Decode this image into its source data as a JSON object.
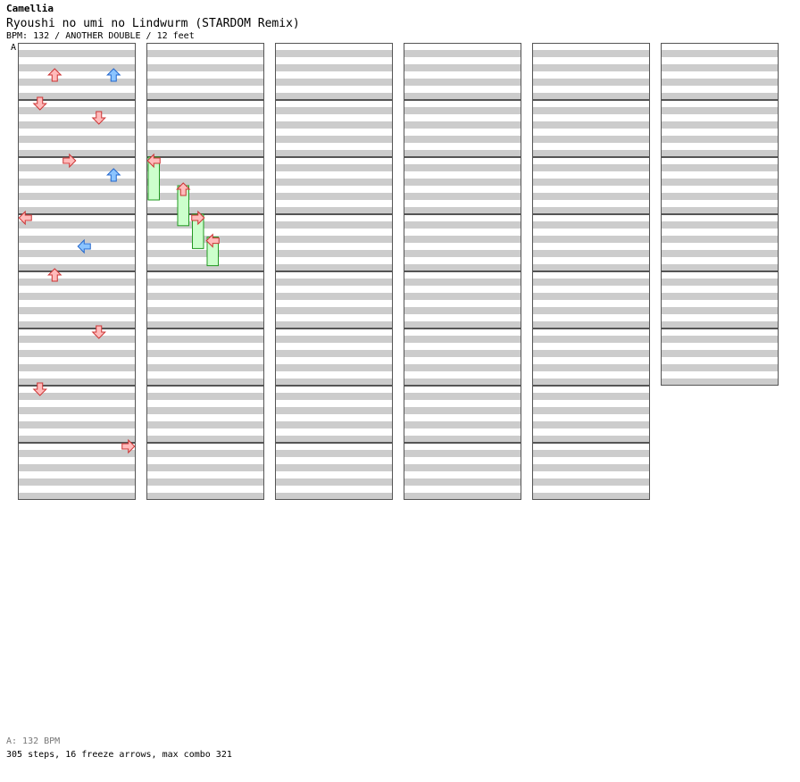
{
  "header": {
    "artist": "Camellia",
    "title": "Ryoushi no umi no Lindwurm (STARDOM Remix)",
    "info": "BPM: 132 / ANOTHER DOUBLE / 12 feet",
    "bpm_marker": "A"
  },
  "footer": {
    "bpm_legend": "A: 132 BPM",
    "stats": "305 steps, 16 freeze arrows, max combo 321"
  },
  "colors": {
    "band": "#cccccc",
    "band_alt": "#ffffff",
    "measure_border": "#555555",
    "arrow_red": "#ffbbbb",
    "arrow_red_stroke": "#cc3333",
    "arrow_blue": "#8bc4ff",
    "arrow_blue_stroke": "#2266cc",
    "arrow_green": "#66ee66",
    "arrow_green_stroke": "#119911",
    "freeze_body": "#ccffcc",
    "freeze_stroke": "#229922"
  },
  "chart_data": {
    "type": "table",
    "mode": "double",
    "lanes": 8,
    "lane_directions": [
      "left",
      "down",
      "up",
      "right",
      "left",
      "down",
      "up",
      "right"
    ],
    "measure_count": 46,
    "columns": 6,
    "measures_per_column": 8,
    "notes": [
      {
        "m": 0.5,
        "lane": 2,
        "div": "4"
      },
      {
        "m": 0.5,
        "lane": 6,
        "div": "8"
      },
      {
        "m": 1.0,
        "lane": 1,
        "div": "4"
      },
      {
        "m": 1.25,
        "lane": 5,
        "div": "4"
      },
      {
        "m": 2.0,
        "lane": 3,
        "div": "4"
      },
      {
        "m": 2.25,
        "lane": 6,
        "div": "8"
      },
      {
        "m": 3.0,
        "lane": 0,
        "div": "4"
      },
      {
        "m": 3.5,
        "lane": 4,
        "div": "8"
      },
      {
        "m": 4.0,
        "lane": 2,
        "div": "4"
      },
      {
        "m": 5.0,
        "lane": 5,
        "div": "4"
      },
      {
        "m": 6.0,
        "lane": 1,
        "div": "4"
      },
      {
        "m": 7.0,
        "lane": 7,
        "div": "4"
      }
    ],
    "freezes": [
      {
        "start": 10.0,
        "end": 10.75,
        "lane": 0
      },
      {
        "start": 10.5,
        "end": 11.2,
        "lane": 2
      },
      {
        "start": 11.0,
        "end": 11.6,
        "lane": 3
      },
      {
        "start": 11.4,
        "end": 11.9,
        "lane": 4
      }
    ]
  }
}
